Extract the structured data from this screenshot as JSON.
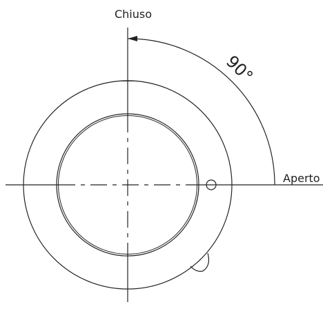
{
  "labels": {
    "top": "Chiuso",
    "right": "Aperto",
    "angle": "90°"
  },
  "colors": {
    "stroke": "#222222",
    "background": "#ffffff"
  }
}
